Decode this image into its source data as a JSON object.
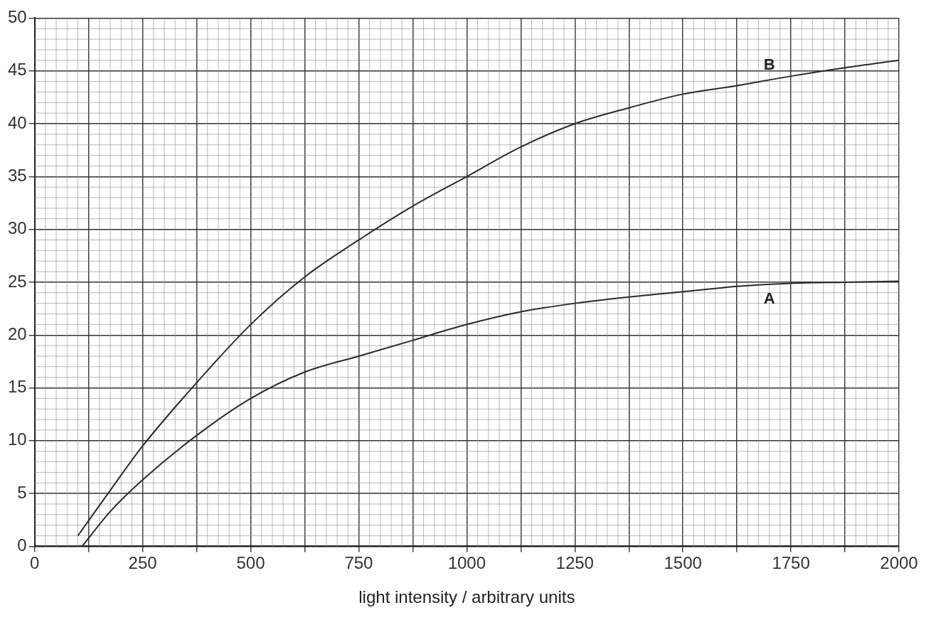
{
  "chart_data": {
    "type": "line",
    "xlabel": "light intensity / arbitrary units",
    "series": [
      {
        "name": "A",
        "color": "#2b2b2b",
        "x": [
          110,
          175,
          250,
          375,
          500,
          625,
          750,
          875,
          1000,
          1125,
          1250,
          1375,
          1500,
          1625,
          1750,
          1875,
          2000
        ],
        "values": [
          0,
          3.3,
          6.3,
          10.5,
          14,
          16.5,
          18,
          19.5,
          21,
          22.2,
          23,
          23.6,
          24.1,
          24.6,
          24.9,
          25,
          25.1
        ]
      },
      {
        "name": "B",
        "color": "#2b2b2b",
        "x": [
          100,
          175,
          250,
          375,
          500,
          625,
          750,
          875,
          1000,
          1125,
          1250,
          1375,
          1500,
          1625,
          1750,
          1875,
          2000
        ],
        "values": [
          1,
          5.3,
          9.5,
          15.5,
          21,
          25.5,
          29,
          32.2,
          35,
          37.8,
          40,
          41.5,
          42.8,
          43.6,
          44.5,
          45.3,
          46
        ]
      }
    ],
    "xlim": [
      0,
      2000
    ],
    "ylim": [
      0,
      50
    ],
    "xticks": [
      0,
      {
        "value": 125,
        "label": null
      },
      250,
      {
        "value": 375,
        "label": null
      },
      500,
      {
        "value": 625,
        "label": null
      },
      750,
      {
        "value": 875,
        "label": null
      },
      1000,
      {
        "value": 1125,
        "label": null
      },
      1250,
      {
        "value": 1375,
        "label": null
      },
      1500,
      {
        "value": 1625,
        "label": null
      },
      1750,
      {
        "value": 1875,
        "label": null
      },
      2000
    ],
    "yticks": [
      0,
      5,
      10,
      15,
      20,
      25,
      30,
      35,
      40,
      45,
      50
    ],
    "grid": true,
    "legend": false,
    "marker": "none",
    "line_style": "solid"
  }
}
